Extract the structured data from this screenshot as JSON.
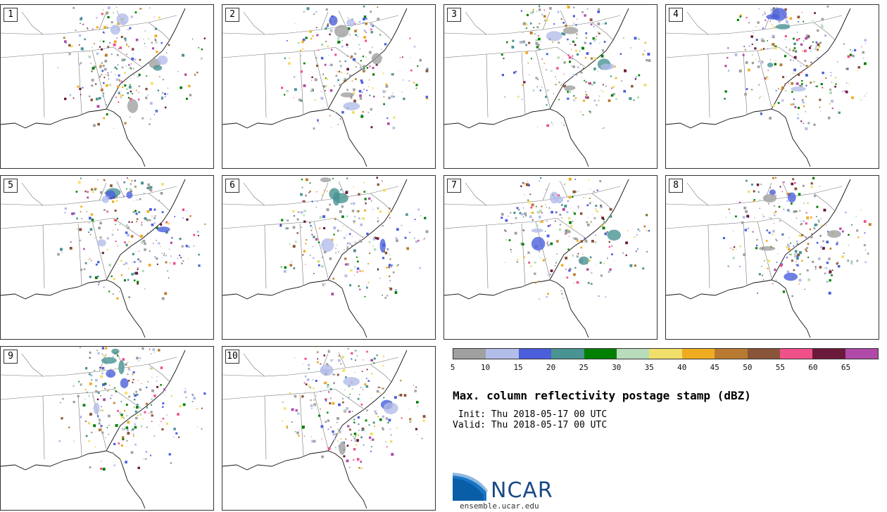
{
  "panels": [
    {
      "label": "1"
    },
    {
      "label": "2"
    },
    {
      "label": "3"
    },
    {
      "label": "4"
    },
    {
      "label": "5"
    },
    {
      "label": "6"
    },
    {
      "label": "7"
    },
    {
      "label": "8"
    },
    {
      "label": "9"
    },
    {
      "label": "10"
    }
  ],
  "colorbar": {
    "colors": [
      "#a0a0a0",
      "#b3bde9",
      "#4b5fdb",
      "#4a9393",
      "#008000",
      "#b9dcbc",
      "#f0e06a",
      "#f0ac20",
      "#b87a30",
      "#8a5438",
      "#f0508a",
      "#6a1a3a",
      "#b04aa8"
    ],
    "labels": [
      "5",
      "10",
      "15",
      "20",
      "25",
      "30",
      "35",
      "40",
      "45",
      "50",
      "55",
      "60",
      "65"
    ]
  },
  "title": "Max. column reflectivity postage stamp (dBZ)",
  "init": " Init: Thu 2018-05-17 00 UTC",
  "valid": "Valid: Thu 2018-05-17 00 UTC",
  "logo": {
    "text": "NCAR",
    "website": "ensemble.ucar.edu"
  }
}
